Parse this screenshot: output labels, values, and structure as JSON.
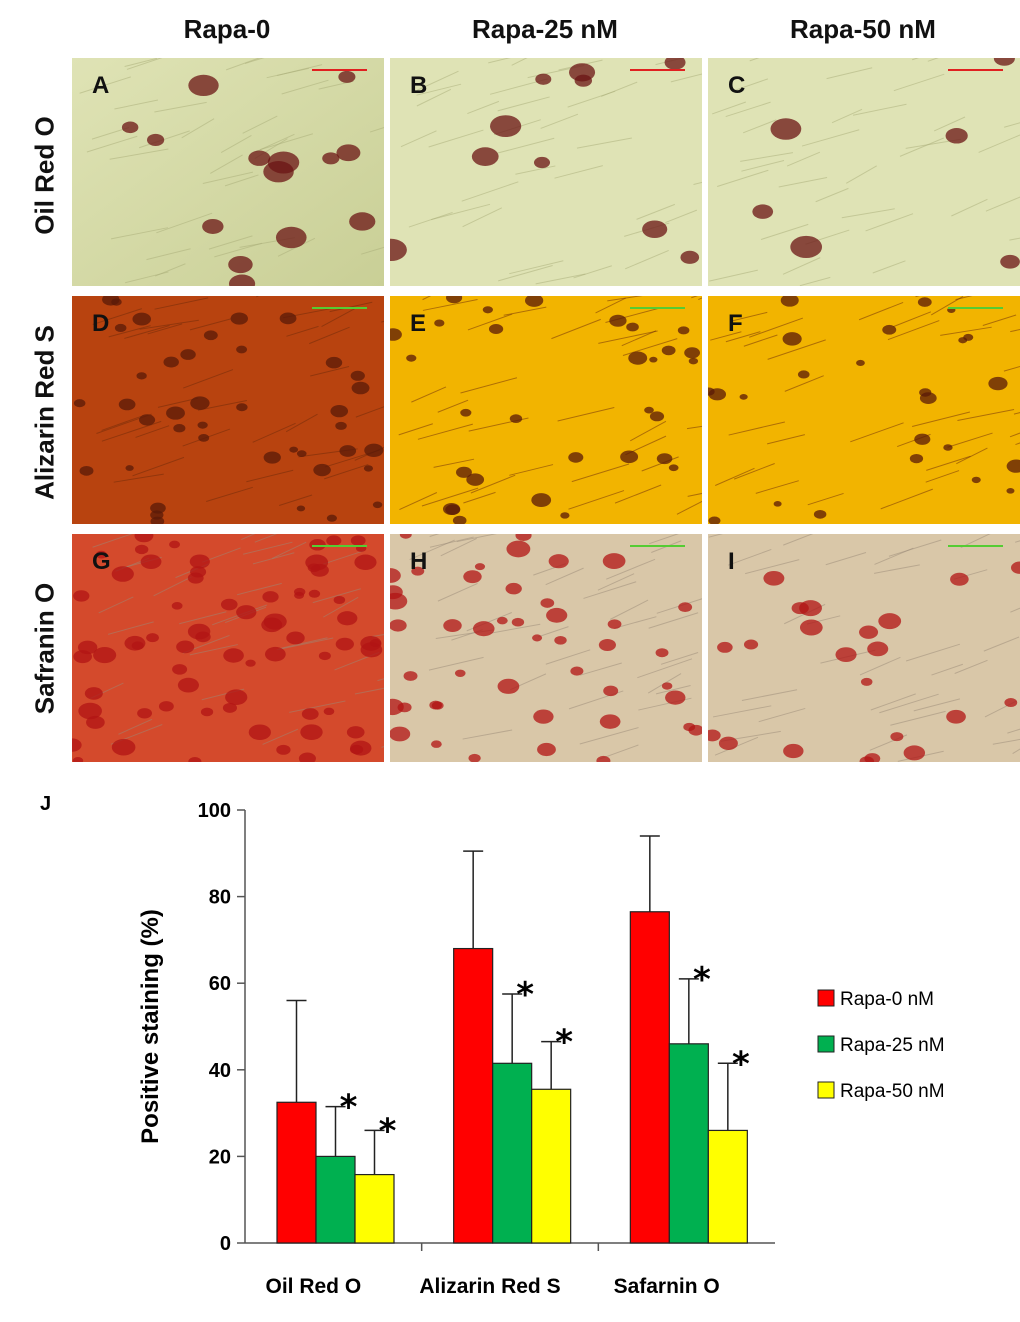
{
  "columns": [
    "Rapa-0",
    "Rapa-25 nM",
    "Rapa-50 nM"
  ],
  "rows": [
    "Oil Red O",
    "Alizarin Red S",
    "Safranin O"
  ],
  "panels": [
    "A",
    "B",
    "C",
    "D",
    "E",
    "F",
    "G",
    "H",
    "I"
  ],
  "chart_label": "J",
  "chart_data": {
    "type": "bar",
    "categories": [
      "Oil Red O",
      "Alizarin Red S",
      "Safarnin O"
    ],
    "series": [
      {
        "name": "Rapa-0 nM",
        "color": "#ff0000",
        "values": [
          32.5,
          68,
          76.5
        ],
        "errors": [
          23.5,
          22.5,
          17.5
        ],
        "significant": [
          false,
          false,
          false
        ]
      },
      {
        "name": "Rapa-25 nM",
        "color": "#00b050",
        "values": [
          20,
          41.5,
          46
        ],
        "errors": [
          11.5,
          16,
          15
        ],
        "significant": [
          true,
          true,
          true
        ]
      },
      {
        "name": "Rapa-50 nM",
        "color": "#ffff00",
        "values": [
          15.8,
          35.5,
          26
        ],
        "errors": [
          10.2,
          11,
          15.5
        ],
        "significant": [
          true,
          true,
          true
        ]
      }
    ],
    "ylabel": "Positive staining (%)",
    "ylim": [
      0,
      100
    ],
    "yticks": [
      0,
      20,
      40,
      60,
      80,
      100
    ],
    "significance_mark": "*",
    "legend_position": "right"
  }
}
